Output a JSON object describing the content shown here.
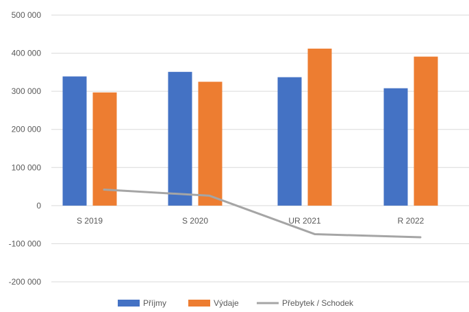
{
  "chart_data": {
    "type": "bar",
    "title": "",
    "xlabel": "",
    "ylabel": "",
    "categories": [
      "S 2019",
      "S 2020",
      "UR 2021",
      "R 2022"
    ],
    "y_ticks": [
      "500 000",
      "400 000",
      "300 000",
      "200 000",
      "100 000",
      "0",
      "-100 000",
      "-200 000"
    ],
    "y_tick_values": [
      500000,
      400000,
      300000,
      200000,
      100000,
      0,
      -100000,
      -200000
    ],
    "ylim": [
      -200000,
      500000
    ],
    "grid": true,
    "legend_position": "bottom",
    "series": [
      {
        "name": "Příjmy",
        "type": "bar",
        "color": "#4472C4",
        "values": [
          339000,
          351000,
          337000,
          308000
        ]
      },
      {
        "name": "Výdaje",
        "type": "bar",
        "color": "#ED7D31",
        "values": [
          297000,
          325000,
          412000,
          391000
        ]
      },
      {
        "name": "Přebytek / Schodek",
        "type": "line",
        "color": "#A5A5A5",
        "values": [
          42000,
          26000,
          -75000,
          -83000
        ]
      }
    ]
  }
}
